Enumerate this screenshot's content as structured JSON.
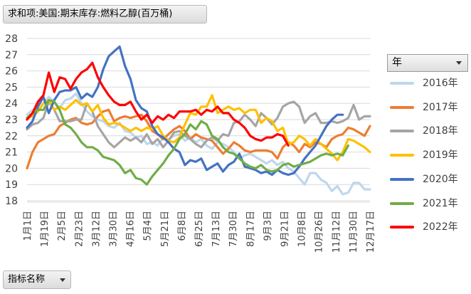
{
  "title_button": "求和项:美国:期末库存:燃料乙醇(百万桶)",
  "bottom_button": "指标名称",
  "legend_header": "年",
  "chart_data": {
    "type": "line",
    "ylim": [
      18,
      28
    ],
    "yticks": [
      18,
      19,
      20,
      21,
      22,
      23,
      24,
      25,
      26,
      27,
      28
    ],
    "x_tick_labels": [
      "1月1日",
      "1月19日",
      "2月5日",
      "2月23日",
      "3月12日",
      "3月30日",
      "4月16日",
      "5月4日",
      "5月21日",
      "6月8日",
      "6月25日",
      "7月13日",
      "7月30日",
      "8月17日",
      "9月3日",
      "9月21日",
      "10月8日",
      "10月26日",
      "11月12日",
      "11月30日",
      "12月17日"
    ],
    "series": [
      {
        "name": "2016年",
        "color": "#bdd7ee",
        "values": [
          23.3,
          23.6,
          23.5,
          24.0,
          24.4,
          24.1,
          23.7,
          24.2,
          24.3,
          24.6,
          24.0,
          23.5,
          23.2,
          23.0,
          22.9,
          22.6,
          22.5,
          22.8,
          22.3,
          22.2,
          21.9,
          22.0,
          21.5,
          21.6,
          21.4,
          21.9,
          21.8,
          22.0,
          22.1,
          21.7,
          21.9,
          21.6,
          21.8,
          21.4,
          21.2,
          21.6,
          21.5,
          21.3,
          21.0,
          20.6,
          20.8,
          20.9,
          20.7,
          20.5,
          20.3,
          20.5,
          20.2,
          20.4,
          20.0,
          19.8,
          19.4,
          19.0,
          19.7,
          19.7,
          19.3,
          19.1,
          18.6,
          18.9,
          18.4,
          18.5,
          19.1,
          19.1,
          18.7,
          18.7
        ]
      },
      {
        "name": "2017年",
        "color": "#ed7d31",
        "values": [
          20.0,
          21.0,
          21.6,
          21.8,
          22.0,
          22.1,
          22.6,
          22.8,
          23.0,
          23.1,
          22.8,
          22.7,
          22.8,
          23.2,
          23.5,
          23.6,
          22.9,
          23.1,
          23.2,
          23.1,
          23.2,
          23.3,
          22.9,
          22.3,
          22.1,
          21.8,
          22.1,
          22.4,
          22.6,
          22.3,
          21.8,
          22.1,
          21.9,
          21.8,
          21.7,
          21.3,
          20.9,
          21.2,
          21.6,
          21.4,
          21.1,
          21.0,
          21.1,
          21.1,
          21.1,
          21.0,
          20.6,
          21.3,
          21.6,
          21.4,
          21.0,
          21.5,
          21.3,
          21.6,
          21.5,
          21.3,
          21.8,
          22.0,
          22.1,
          22.5,
          22.4,
          22.2,
          22.0,
          22.6
        ]
      },
      {
        "name": "2018年",
        "color": "#a5a5a5",
        "values": [
          22.4,
          22.7,
          22.8,
          23.1,
          24.1,
          23.6,
          22.9,
          22.9,
          22.9,
          23.0,
          23.0,
          24.0,
          23.5,
          22.6,
          22.1,
          21.6,
          21.3,
          21.6,
          21.9,
          21.7,
          21.9,
          21.6,
          22.1,
          21.5,
          21.8,
          21.3,
          21.7,
          22.2,
          22.3,
          22.0,
          21.8,
          21.5,
          21.3,
          21.7,
          21.9,
          21.7,
          22.1,
          22.0,
          22.8,
          22.9,
          23.3,
          23.0,
          22.6,
          23.4,
          23.1,
          22.7,
          23.1,
          23.8,
          24.0,
          24.1,
          23.8,
          22.8,
          23.2,
          23.4,
          22.8,
          22.8,
          22.9,
          22.8,
          22.9,
          23.1,
          23.9,
          23.0,
          23.2,
          23.2
        ]
      },
      {
        "name": "2019年",
        "color": "#ffc000",
        "values": [
          23.1,
          23.2,
          23.5,
          24.0,
          24.2,
          23.6,
          23.8,
          23.6,
          23.9,
          24.2,
          23.9,
          24.0,
          23.5,
          23.9,
          23.1,
          22.7,
          22.8,
          22.7,
          22.5,
          22.3,
          22.5,
          22.3,
          22.5,
          22.4,
          22.6,
          22.0,
          21.7,
          21.6,
          21.9,
          22.7,
          23.4,
          23.3,
          23.8,
          23.8,
          24.5,
          23.4,
          23.6,
          23.8,
          23.6,
          23.7,
          23.4,
          23.6,
          23.6,
          22.8,
          23.1,
          22.9,
          22.3,
          22.5,
          21.5,
          21.6,
          22.0,
          21.8,
          21.4,
          21.8,
          21.5,
          21.2,
          20.9,
          20.5,
          21.0,
          21.8,
          21.7,
          21.5,
          21.3,
          21.0
        ]
      },
      {
        "name": "2020年",
        "color": "#4472c4",
        "values": [
          22.5,
          22.9,
          23.8,
          24.4,
          23.4,
          24.2,
          24.7,
          24.8,
          24.8,
          25.0,
          24.3,
          24.6,
          24.4,
          25.0,
          26.1,
          26.9,
          27.2,
          27.5,
          26.3,
          25.5,
          24.2,
          23.7,
          23.5,
          22.6,
          22.1,
          21.9,
          21.6,
          21.2,
          21.0,
          20.2,
          20.5,
          20.4,
          20.6,
          19.9,
          20.1,
          20.3,
          19.8,
          20.2,
          20.4,
          20.9,
          20.1,
          20.0,
          19.9,
          19.7,
          19.8,
          19.6,
          19.9,
          19.7,
          19.6,
          19.7,
          20.1,
          20.6,
          21.0,
          21.4,
          22.0,
          22.6,
          23.0,
          23.3,
          23.3
        ]
      },
      {
        "name": "2021年",
        "color": "#70ad47",
        "values": [
          23.1,
          23.4,
          23.6,
          23.6,
          24.2,
          24.1,
          23.6,
          22.7,
          22.5,
          22.1,
          21.6,
          21.3,
          21.3,
          21.1,
          20.7,
          20.6,
          20.5,
          20.2,
          19.7,
          19.9,
          19.4,
          19.3,
          19.0,
          19.5,
          19.9,
          20.3,
          20.8,
          21.2,
          21.8,
          22.1,
          22.7,
          22.4,
          22.9,
          22.7,
          22.0,
          21.8,
          21.3,
          21.0,
          20.9,
          20.6,
          20.3,
          20.1,
          20.0,
          20.2,
          19.9,
          19.8,
          19.9,
          20.2,
          20.3,
          20.1,
          20.2,
          20.3,
          20.4,
          20.6,
          20.8,
          20.9,
          20.8,
          20.9,
          20.8,
          21.4
        ]
      },
      {
        "name": "2022年",
        "color": "#ff0000",
        "values": [
          23.0,
          23.4,
          24.1,
          24.5,
          25.9,
          24.7,
          25.6,
          25.5,
          24.9,
          25.5,
          25.9,
          26.1,
          26.5,
          25.6,
          25.0,
          24.5,
          24.1,
          23.9,
          23.9,
          24.1,
          23.5,
          23.0,
          23.3,
          22.8,
          23.2,
          23.0,
          23.3,
          23.1,
          23.5,
          23.5,
          23.5,
          23.6,
          23.3,
          23.6,
          23.5,
          23.8,
          23.4,
          23.4,
          23.0,
          22.8,
          22.5,
          22.0,
          21.8,
          21.7,
          21.9,
          21.9,
          22.1,
          22.0,
          21.4
        ]
      }
    ]
  }
}
